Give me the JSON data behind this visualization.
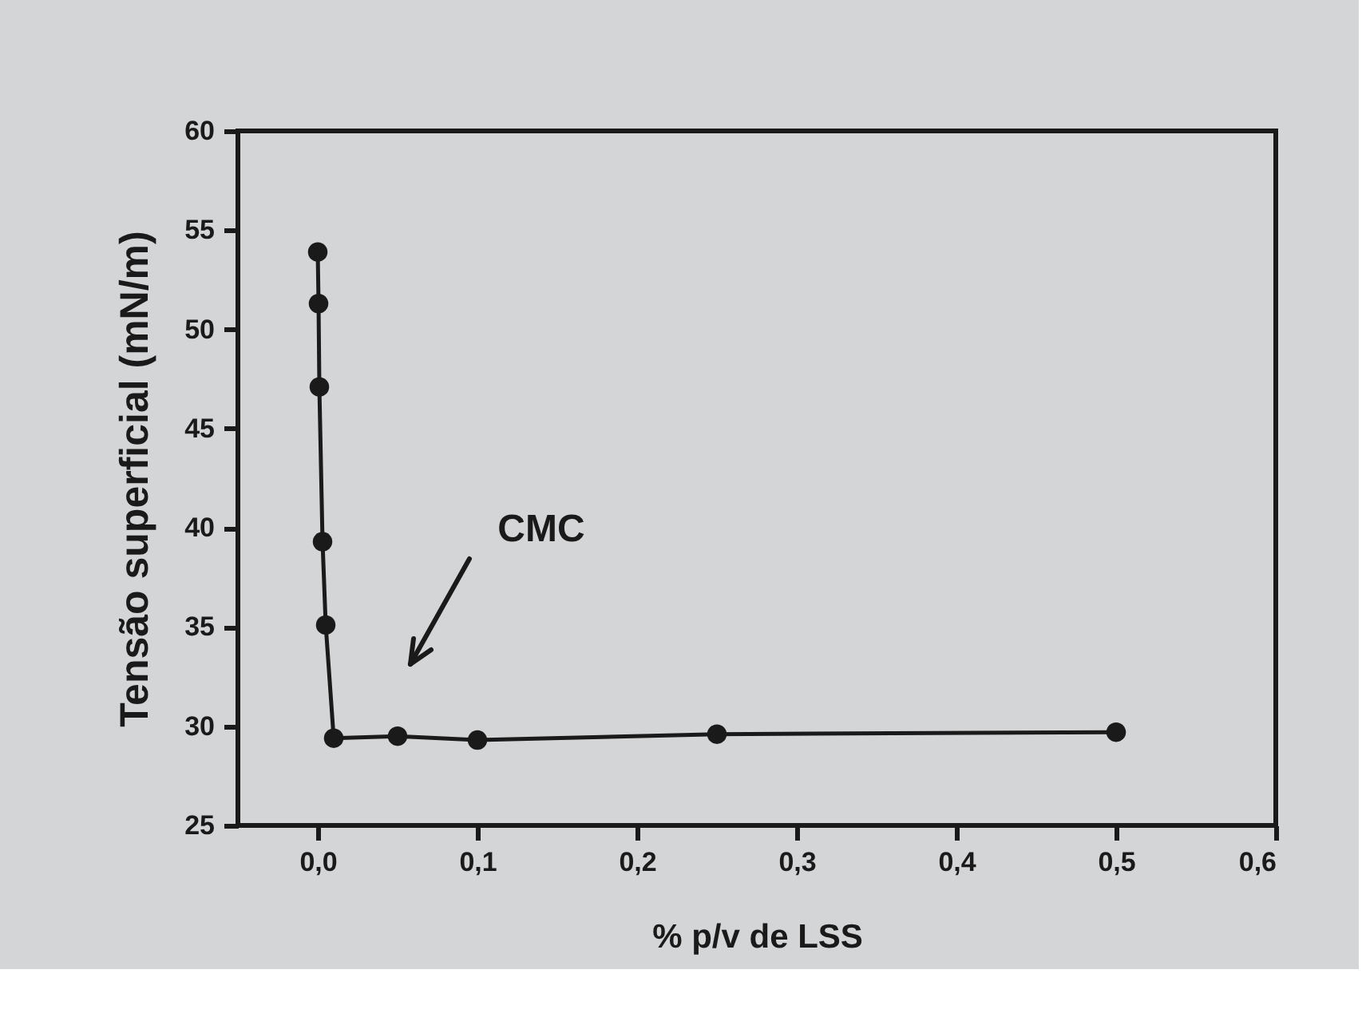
{
  "chart_data": {
    "type": "line",
    "xlabel": "% p/v de LSS",
    "ylabel": "Tensão superficial (mN/m)",
    "x": [
      0,
      0.0005,
      0.001,
      0.003,
      0.005,
      0.01,
      0.05,
      0.1,
      0.25,
      0.5
    ],
    "series": [
      {
        "color": "#1a1a1a",
        "values": [
          53.9,
          51.3,
          47.1,
          39.3,
          35.1,
          29.4,
          29.5,
          29.3,
          29.6,
          29.7
        ]
      }
    ],
    "marker": "circle",
    "line_style": "solid",
    "xlim": [
      -0.05,
      0.6
    ],
    "xticks": [
      {
        "value": 0,
        "label": "0,0"
      },
      {
        "value": 0.1,
        "label": "0,1"
      },
      {
        "value": 0.2,
        "label": "0,2"
      },
      {
        "value": 0.3,
        "label": "0,3"
      },
      {
        "value": 0.4,
        "label": "0,4"
      },
      {
        "value": 0.5,
        "label": "0,5"
      },
      {
        "value": 0.6,
        "label": "0,6"
      }
    ],
    "ylim": [
      25,
      60
    ],
    "yticks": [
      25,
      30,
      35,
      40,
      45,
      50,
      55,
      60
    ],
    "annotations": [
      "CMC"
    ]
  }
}
